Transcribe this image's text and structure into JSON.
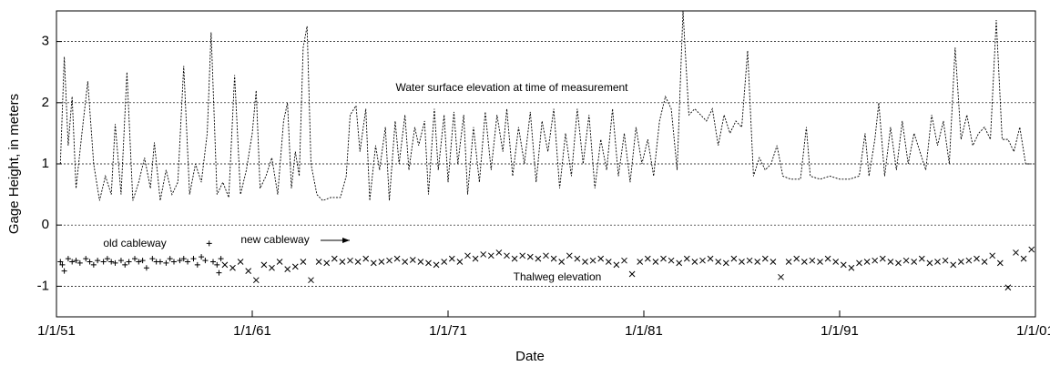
{
  "chart_data": {
    "type": "line",
    "xlabel": "Date",
    "ylabel": "Gage Height, in meters",
    "annotations": [
      "Water surface elevation at time of measurement",
      "old cableway",
      "new cableway",
      "Thalweg elevation"
    ],
    "xlim": [
      1951,
      2001
    ],
    "xticks": [
      {
        "value": 1951,
        "label": "1/1/51"
      },
      {
        "value": 1961,
        "label": "1/1/61"
      },
      {
        "value": 1971,
        "label": "1/1/71"
      },
      {
        "value": 1981,
        "label": "1/1/81"
      },
      {
        "value": 1991,
        "label": "1/1/91"
      },
      {
        "value": 2001,
        "label": "1/1/01"
      }
    ],
    "ylim": [
      -1.5,
      3.5
    ],
    "yticks": [
      3,
      2,
      1,
      0,
      -1
    ],
    "grid": true,
    "series": [
      {
        "name": "Water surface elevation",
        "style": "line",
        "color": "#000",
        "x": [
          1951.2,
          1951.4,
          1951.6,
          1951.8,
          1952.0,
          1952.3,
          1952.6,
          1952.9,
          1953.2,
          1953.5,
          1953.8,
          1954.0,
          1954.3,
          1954.6,
          1954.9,
          1955.2,
          1955.5,
          1955.8,
          1956.0,
          1956.3,
          1956.6,
          1956.9,
          1957.2,
          1957.5,
          1957.8,
          1958.1,
          1958.4,
          1958.7,
          1958.9,
          1959.2,
          1959.5,
          1959.8,
          1960.1,
          1960.4,
          1960.7,
          1961.0,
          1961.2,
          1961.4,
          1961.7,
          1962.0,
          1962.3,
          1962.6,
          1962.8,
          1963.0,
          1963.2,
          1963.4,
          1963.6,
          1963.8,
          1964.0,
          1964.3,
          1964.6,
          1965.0,
          1965.5,
          1965.8,
          1966.0,
          1966.3,
          1966.5,
          1966.8,
          1967.0,
          1967.3,
          1967.5,
          1967.8,
          1968.0,
          1968.3,
          1968.5,
          1968.8,
          1969.0,
          1969.3,
          1969.5,
          1969.8,
          1970.0,
          1970.3,
          1970.5,
          1970.8,
          1971.0,
          1971.3,
          1971.5,
          1971.8,
          1972.0,
          1972.3,
          1972.6,
          1972.9,
          1973.2,
          1973.5,
          1973.8,
          1974.0,
          1974.3,
          1974.6,
          1974.9,
          1975.2,
          1975.5,
          1975.8,
          1976.1,
          1976.4,
          1976.7,
          1977.0,
          1977.3,
          1977.6,
          1977.9,
          1978.2,
          1978.5,
          1978.8,
          1979.1,
          1979.4,
          1979.7,
          1980.0,
          1980.3,
          1980.6,
          1980.9,
          1981.2,
          1981.5,
          1981.8,
          1982.1,
          1982.4,
          1982.7,
          1983.0,
          1983.3,
          1983.6,
          1983.9,
          1984.2,
          1984.5,
          1984.8,
          1985.1,
          1985.4,
          1985.7,
          1986.0,
          1986.3,
          1986.6,
          1986.9,
          1987.2,
          1987.5,
          1987.8,
          1988.1,
          1988.5,
          1989.0,
          1989.3,
          1989.5,
          1990.0,
          1990.5,
          1991.0,
          1991.5,
          1992.0,
          1992.3,
          1992.5,
          1992.8,
          1993.0,
          1993.3,
          1993.6,
          1993.9,
          1994.2,
          1994.5,
          1994.8,
          1995.1,
          1995.4,
          1995.7,
          1996.0,
          1996.3,
          1996.6,
          1996.9,
          1997.2,
          1997.5,
          1997.8,
          1998.1,
          1998.4,
          1998.7,
          1999.0,
          1999.3,
          1999.6,
          1999.9,
          2000.2,
          2000.5,
          2000.8
        ],
        "values": [
          1.0,
          2.75,
          1.3,
          2.1,
          0.6,
          1.5,
          2.35,
          1.0,
          0.4,
          0.8,
          0.5,
          1.65,
          0.5,
          2.5,
          0.4,
          0.7,
          1.1,
          0.6,
          1.35,
          0.4,
          0.9,
          0.5,
          0.7,
          2.6,
          0.5,
          1.0,
          0.7,
          1.5,
          3.15,
          0.5,
          0.7,
          0.45,
          2.45,
          0.5,
          0.9,
          1.5,
          2.2,
          0.6,
          0.8,
          1.1,
          0.5,
          1.7,
          2.0,
          0.6,
          1.2,
          0.8,
          2.9,
          3.25,
          1.0,
          0.5,
          0.4,
          0.45,
          0.45,
          0.8,
          1.8,
          1.95,
          1.2,
          1.9,
          0.4,
          1.3,
          0.9,
          1.6,
          0.4,
          1.7,
          1.0,
          1.8,
          0.9,
          1.6,
          1.3,
          1.7,
          0.5,
          1.9,
          0.9,
          1.8,
          0.7,
          1.85,
          1.0,
          1.8,
          0.5,
          1.6,
          0.7,
          1.85,
          0.9,
          1.8,
          1.2,
          1.9,
          0.8,
          1.6,
          1.0,
          1.85,
          0.7,
          1.7,
          1.2,
          1.9,
          0.6,
          1.5,
          0.8,
          1.9,
          1.0,
          1.8,
          0.6,
          1.4,
          0.9,
          1.9,
          0.8,
          1.5,
          0.7,
          1.6,
          1.0,
          1.4,
          0.8,
          1.7,
          2.1,
          1.9,
          0.9,
          3.5,
          1.8,
          1.9,
          1.8,
          1.7,
          1.9,
          1.3,
          1.8,
          1.5,
          1.7,
          1.6,
          2.85,
          0.8,
          1.1,
          0.9,
          1.0,
          1.3,
          0.8,
          0.75,
          0.75,
          1.6,
          0.8,
          0.75,
          0.8,
          0.75,
          0.75,
          0.8,
          1.5,
          0.8,
          1.4,
          2.0,
          0.8,
          1.6,
          0.9,
          1.7,
          1.0,
          1.5,
          1.2,
          0.9,
          1.8,
          1.3,
          1.7,
          1.0,
          2.9,
          1.4,
          1.8,
          1.3,
          1.5,
          1.6,
          1.4,
          3.35,
          1.4,
          1.4,
          1.2,
          1.6,
          1.0,
          1.0
        ]
      },
      {
        "name": "old cableway",
        "style": "plus",
        "color": "#000",
        "x": [
          1951.2,
          1951.4,
          1951.6,
          1951.8,
          1952.0,
          1952.2,
          1952.5,
          1952.7,
          1952.9,
          1953.1,
          1953.4,
          1953.6,
          1953.8,
          1954.0,
          1954.3,
          1954.5,
          1954.7,
          1955.0,
          1955.2,
          1955.4,
          1955.6,
          1955.9,
          1956.1,
          1956.3,
          1956.6,
          1956.8,
          1957.0,
          1957.3,
          1957.5,
          1957.7,
          1958.0,
          1958.2,
          1958.4,
          1958.6,
          1958.8,
          1959.0,
          1959.2,
          1959.4,
          1951.3,
          1959.3
        ],
        "values": [
          -0.6,
          -0.75,
          -0.55,
          -0.6,
          -0.58,
          -0.62,
          -0.55,
          -0.6,
          -0.65,
          -0.58,
          -0.6,
          -0.55,
          -0.6,
          -0.62,
          -0.58,
          -0.65,
          -0.6,
          -0.55,
          -0.6,
          -0.58,
          -0.7,
          -0.55,
          -0.6,
          -0.6,
          -0.62,
          -0.55,
          -0.6,
          -0.58,
          -0.55,
          -0.6,
          -0.55,
          -0.65,
          -0.52,
          -0.58,
          -0.3,
          -0.6,
          -0.65,
          -0.55,
          -0.65,
          -0.78
        ]
      },
      {
        "name": "new cableway",
        "style": "cross",
        "color": "#000",
        "x": [
          1959.6,
          1960.0,
          1960.4,
          1960.8,
          1961.2,
          1961.6,
          1962.0,
          1962.4,
          1962.8,
          1963.2,
          1963.6,
          1964.0,
          1964.4,
          1964.8,
          1965.2,
          1965.6,
          1966.0,
          1966.4,
          1966.8,
          1967.2,
          1967.6,
          1968.0,
          1968.4,
          1968.8,
          1969.2,
          1969.6,
          1970.0,
          1970.4,
          1970.8,
          1971.2,
          1971.6,
          1972.0,
          1972.4,
          1972.8,
          1973.2,
          1973.6,
          1974.0,
          1974.4,
          1974.8,
          1975.2,
          1975.6,
          1976.0,
          1976.4,
          1976.8,
          1977.2,
          1977.6,
          1978.0,
          1978.4,
          1978.8,
          1979.2,
          1979.6,
          1980.0,
          1980.4,
          1980.8,
          1981.2,
          1981.6,
          1982.0,
          1982.4,
          1982.8,
          1983.2,
          1983.6,
          1984.0,
          1984.4,
          1984.8,
          1985.2,
          1985.6,
          1986.0,
          1986.4,
          1986.8,
          1987.2,
          1987.6,
          1988.0,
          1988.4,
          1988.8,
          1989.2,
          1989.6,
          1990.0,
          1990.4,
          1990.8,
          1991.2,
          1991.6,
          1992.0,
          1992.4,
          1992.8,
          1993.2,
          1993.6,
          1994.0,
          1994.4,
          1994.8,
          1995.2,
          1995.6,
          1996.0,
          1996.4,
          1996.8,
          1997.2,
          1997.6,
          1998.0,
          1998.4,
          1998.8,
          1999.2,
          1999.6,
          2000.0,
          2000.4,
          2000.8
        ],
        "values": [
          -0.65,
          -0.7,
          -0.6,
          -0.75,
          -0.9,
          -0.65,
          -0.7,
          -0.6,
          -0.72,
          -0.68,
          -0.6,
          -0.9,
          -0.6,
          -0.62,
          -0.55,
          -0.6,
          -0.58,
          -0.6,
          -0.55,
          -0.62,
          -0.6,
          -0.58,
          -0.55,
          -0.6,
          -0.57,
          -0.6,
          -0.62,
          -0.65,
          -0.6,
          -0.55,
          -0.6,
          -0.5,
          -0.55,
          -0.48,
          -0.5,
          -0.45,
          -0.5,
          -0.55,
          -0.5,
          -0.52,
          -0.55,
          -0.5,
          -0.55,
          -0.6,
          -0.5,
          -0.55,
          -0.6,
          -0.58,
          -0.55,
          -0.6,
          -0.65,
          -0.58,
          -0.8,
          -0.6,
          -0.55,
          -0.6,
          -0.55,
          -0.58,
          -0.62,
          -0.55,
          -0.6,
          -0.58,
          -0.55,
          -0.6,
          -0.62,
          -0.55,
          -0.6,
          -0.58,
          -0.6,
          -0.55,
          -0.6,
          -0.85,
          -0.6,
          -0.55,
          -0.6,
          -0.58,
          -0.6,
          -0.55,
          -0.6,
          -0.65,
          -0.7,
          -0.62,
          -0.6,
          -0.58,
          -0.55,
          -0.6,
          -0.62,
          -0.58,
          -0.6,
          -0.55,
          -0.62,
          -0.6,
          -0.58,
          -0.65,
          -0.6,
          -0.58,
          -0.55,
          -0.6,
          -0.5,
          -0.62,
          -1.02,
          -0.45,
          -0.55,
          -0.4
        ]
      }
    ]
  }
}
